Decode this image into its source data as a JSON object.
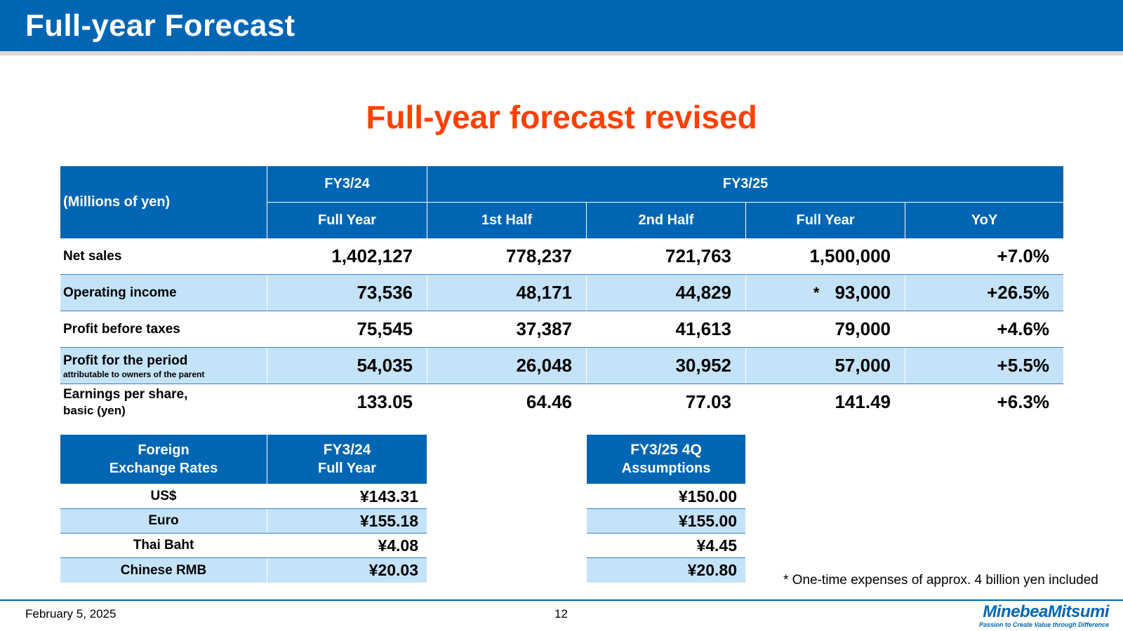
{
  "header": {
    "title": "Full-year Forecast"
  },
  "headline": "Full-year forecast revised",
  "forecast_table": {
    "units_label": "(Millions of yen)",
    "fy24_label": "FY3/24",
    "fy25_label": "FY3/25",
    "columns": [
      "Full Year",
      "1st Half",
      "2nd Half",
      "Full Year",
      "YoY"
    ],
    "rows": [
      {
        "label": "Net sales",
        "sub": "",
        "values": [
          "1,402,127",
          "778,237",
          "721,763",
          "1,500,000",
          "+7.0%"
        ]
      },
      {
        "label": "Operating income",
        "sub": "",
        "marker": "*",
        "values": [
          "73,536",
          "48,171",
          "44,829",
          "93,000",
          "+26.5%"
        ]
      },
      {
        "label": "Profit before taxes",
        "sub": "",
        "values": [
          "75,545",
          "37,387",
          "41,613",
          "79,000",
          "+4.6%"
        ]
      },
      {
        "label": "Profit for the period",
        "sub": "attributable to owners of the parent",
        "values": [
          "54,035",
          "26,048",
          "30,952",
          "57,000",
          "+5.5%"
        ]
      },
      {
        "label": "Earnings per share,",
        "sub": "basic  (yen)",
        "values": [
          "133.05",
          "64.46",
          "77.03",
          "141.49",
          "+6.3%"
        ]
      }
    ]
  },
  "fx_table": {
    "header_label_line1": "Foreign",
    "header_label_line2": "Exchange Rates",
    "fy24_line1": "FY3/24",
    "fy24_line2": "Full Year",
    "fy25_line1": "FY3/25 4Q",
    "fy25_line2": "Assumptions",
    "rows": [
      {
        "currency": "US$",
        "fy24": "¥143.31",
        "fy25": "¥150.00"
      },
      {
        "currency": "Euro",
        "fy24": "¥155.18",
        "fy25": "¥155.00"
      },
      {
        "currency": "Thai Baht",
        "fy24": "¥4.08",
        "fy25": "¥4.45"
      },
      {
        "currency": "Chinese RMB",
        "fy24": "¥20.03",
        "fy25": "¥20.80"
      }
    ]
  },
  "note": "* One-time expenses of approx. 4 billion yen included",
  "footer": {
    "date": "February 5, 2025",
    "page": "12",
    "logo_name": "MinebeaMitsumi",
    "logo_tagline": "Passion to Create Value through Difference"
  },
  "colors": {
    "brand_blue": "#0066b3",
    "accent_red": "#ff4000",
    "band_blue": "#c5e3f8"
  }
}
